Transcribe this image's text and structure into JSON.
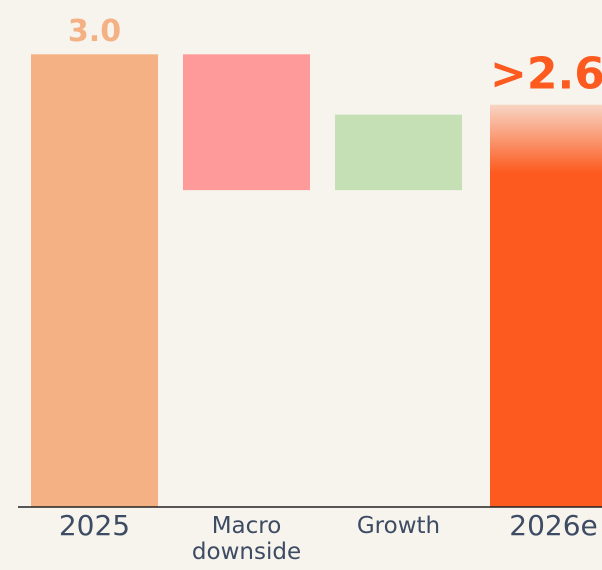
{
  "chart_data": {
    "type": "waterfall",
    "categories": [
      "2025",
      "Macro downside",
      "Growth",
      "2026e"
    ],
    "measure": [
      "absolute",
      "relative",
      "relative",
      "total"
    ],
    "values": [
      3.0,
      -0.9,
      0.5,
      2.6
    ],
    "value_labels": [
      "3.0",
      null,
      null,
      ">2.6"
    ],
    "colors": [
      "#f4b183",
      "#ff9a9a",
      "#c5e0b4",
      "#fc5a1e"
    ],
    "ylim": [
      0,
      3.36
    ]
  }
}
